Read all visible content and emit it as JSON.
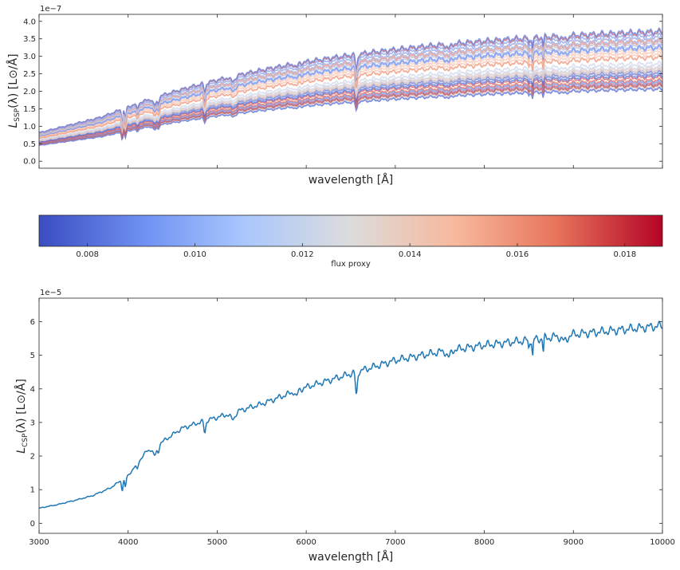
{
  "chart_data": [
    {
      "type": "line",
      "title": "",
      "xlabel": "wavelength [Å]",
      "ylabel_main": "L",
      "ylabel_sub": "SSP",
      "ylabel_rest": "(λ) [L",
      "ylabel_unit_tail": "/Å]",
      "y_scale_text": "1e−7",
      "xlim": [
        3000,
        10000
      ],
      "ylim": [
        -0.2,
        4.2
      ],
      "yticks": [
        0.0,
        0.5,
        1.0,
        1.5,
        2.0,
        2.5,
        3.0,
        3.5,
        4.0
      ],
      "ytick_labels": [
        "0.0",
        "0.5",
        "1.0",
        "1.5",
        "2.0",
        "2.5",
        "3.0",
        "3.5",
        "4.0"
      ],
      "xticks": [
        3000,
        4000,
        5000,
        6000,
        7000,
        8000,
        9000,
        10000
      ],
      "xtick_labels_shown": false,
      "grid": false,
      "series_description_count": 60,
      "color_range": [
        0.0071,
        0.0187
      ],
      "colormap": "coolwarm",
      "envelope_at_10000": {
        "min": 2.05,
        "max": 3.75
      }
    },
    {
      "type": "colorbar",
      "label": "flux proxy",
      "vmin": 0.0071,
      "vmax": 0.0187,
      "ticks": [
        0.008,
        0.01,
        0.012,
        0.014,
        0.016,
        0.018
      ],
      "tick_labels": [
        "0.008",
        "0.010",
        "0.012",
        "0.014",
        "0.016",
        "0.018"
      ],
      "colors": [
        "#3b4cc0",
        "#6f92f3",
        "#aac7fd",
        "#dddcdc",
        "#f7b89c",
        "#e7745b",
        "#b40426"
      ]
    },
    {
      "type": "line",
      "title": "",
      "xlabel": "wavelength [Å]",
      "ylabel_main": "L",
      "ylabel_sub": "CSP",
      "ylabel_rest": "(λ) [L",
      "ylabel_unit_tail": "/Å]",
      "y_scale_text": "1e−5",
      "xlim": [
        3000,
        10000
      ],
      "ylim": [
        -0.3,
        6.7
      ],
      "yticks": [
        0,
        1,
        2,
        3,
        4,
        5,
        6
      ],
      "ytick_labels": [
        "0",
        "1",
        "2",
        "3",
        "4",
        "5",
        "6"
      ],
      "xticks": [
        3000,
        4000,
        5000,
        6000,
        7000,
        8000,
        9000,
        10000
      ],
      "xtick_labels": [
        "3000",
        "4000",
        "5000",
        "6000",
        "7000",
        "8000",
        "9000",
        "10000"
      ],
      "grid": false,
      "line_color": "#1f77b4",
      "x": [
        3000,
        3200,
        3400,
        3600,
        3800,
        4000,
        4200,
        4400,
        4600,
        4800,
        5000,
        5500,
        6000,
        6500,
        7000,
        7500,
        8000,
        8500,
        9000,
        9500,
        10000
      ],
      "y": [
        0.45,
        0.55,
        0.68,
        0.82,
        1.05,
        1.42,
        2.12,
        2.45,
        2.82,
        3.0,
        3.15,
        3.55,
        4.05,
        4.45,
        4.85,
        5.1,
        5.3,
        5.45,
        5.62,
        5.75,
        5.88
      ]
    }
  ]
}
